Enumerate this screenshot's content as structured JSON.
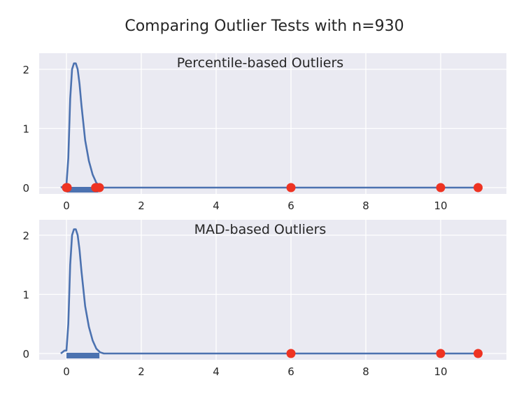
{
  "chart_data": {
    "suptitle": "Comparing Outlier Tests with n=930",
    "type": "line",
    "style": "seaborn-darkgrid",
    "colors": {
      "background": "#eaeaf2",
      "grid": "#ffffff",
      "line": "#4c72b0",
      "outlier": "#ee3322"
    },
    "subplots": [
      {
        "title": "Percentile-based Outliers",
        "xlim": [
          -0.7,
          11.7
        ],
        "ylim": [
          -0.1,
          2.2
        ],
        "xticks": [
          "0",
          "2",
          "4",
          "6",
          "8",
          "10"
        ],
        "yticks": [
          "0",
          "1",
          "2"
        ],
        "grid": true,
        "kde": {
          "x": [
            -0.15,
            0.0,
            0.05,
            0.1,
            0.15,
            0.2,
            0.25,
            0.3,
            0.35,
            0.4,
            0.5,
            0.6,
            0.7,
            0.8,
            0.9,
            1.0,
            2,
            4,
            6,
            8,
            10,
            11
          ],
          "y": [
            0.0,
            0.05,
            0.5,
            1.5,
            2.0,
            2.1,
            2.1,
            2.0,
            1.75,
            1.4,
            0.8,
            0.45,
            0.22,
            0.08,
            0.02,
            0.0,
            0.0,
            0.0,
            0.0,
            0.0,
            0.0,
            0.0
          ]
        },
        "rug": {
          "x_start": 0.0,
          "x_end": 0.85
        },
        "outliers_x": [
          0.0,
          0.02,
          0.78,
          0.88,
          6.0,
          10.0,
          11.0
        ]
      },
      {
        "title": "MAD-based Outliers",
        "xlim": [
          -0.7,
          11.7
        ],
        "ylim": [
          -0.1,
          2.2
        ],
        "xticks": [
          "0",
          "2",
          "4",
          "6",
          "8",
          "10"
        ],
        "yticks": [
          "0",
          "1",
          "2"
        ],
        "grid": true,
        "kde": {
          "x": [
            -0.15,
            -0.05,
            0.0,
            0.05,
            0.1,
            0.15,
            0.2,
            0.25,
            0.3,
            0.35,
            0.4,
            0.5,
            0.6,
            0.7,
            0.8,
            0.9,
            1.0,
            2,
            4,
            6,
            8,
            10,
            11
          ],
          "y": [
            0.0,
            0.05,
            0.05,
            0.5,
            1.5,
            2.0,
            2.1,
            2.1,
            2.0,
            1.75,
            1.4,
            0.8,
            0.45,
            0.22,
            0.08,
            0.02,
            0.0,
            0.0,
            0.0,
            0.0,
            0.0,
            0.0,
            0.0
          ]
        },
        "rug": {
          "x_start": 0.0,
          "x_end": 0.88
        },
        "outliers_x": [
          6.0,
          10.0,
          11.0
        ]
      }
    ]
  }
}
